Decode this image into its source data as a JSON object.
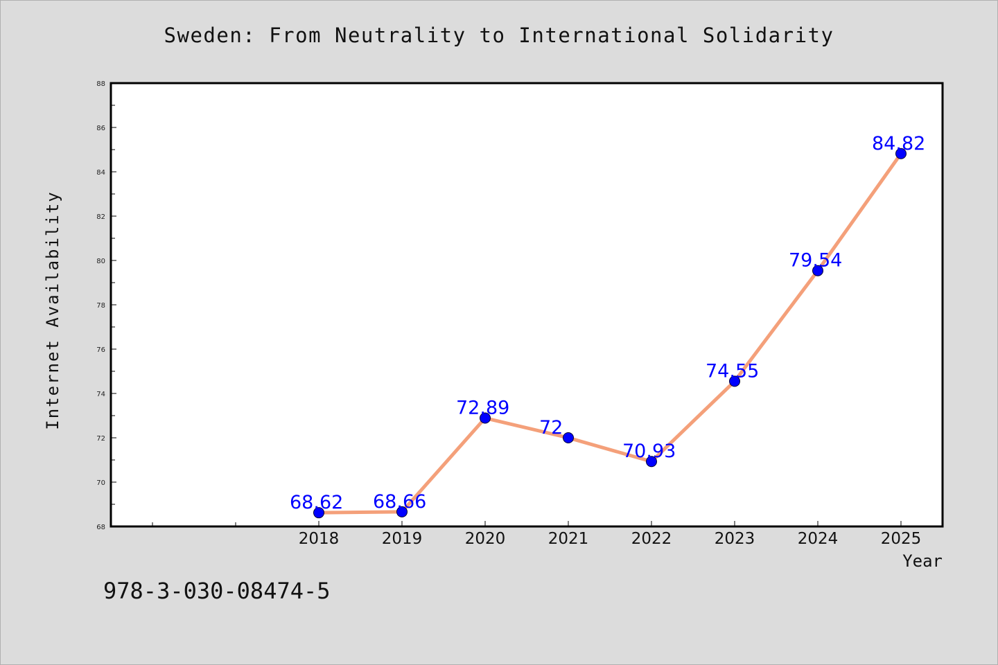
{
  "title": "Sweden: From Neutrality to International Solidarity",
  "footer_text": "978-3-030-08474-5",
  "chart_data": {
    "type": "line",
    "title": "Sweden: From Neutrality to International Solidarity",
    "xlabel": "Year",
    "ylabel": "Internet Availability",
    "categories": [
      "2018",
      "2019",
      "2020",
      "2021",
      "2022",
      "2023",
      "2024",
      "2025"
    ],
    "series": [
      {
        "values": [
          68.62,
          68.66,
          72.89,
          72,
          70.93,
          74.55,
          79.54,
          84.82
        ],
        "labels": [
          "68.62",
          "68.66",
          "72.89",
          "72",
          "70.93",
          "74.55",
          "79.54",
          "84.82"
        ],
        "line_color": "#f4a07a",
        "marker_color": "#0000ff"
      }
    ],
    "ylim": [
      68,
      88
    ],
    "yticks": [
      68,
      70,
      72,
      74,
      76,
      78,
      80,
      82,
      84,
      86,
      88
    ],
    "grid": false,
    "legend": "none"
  }
}
